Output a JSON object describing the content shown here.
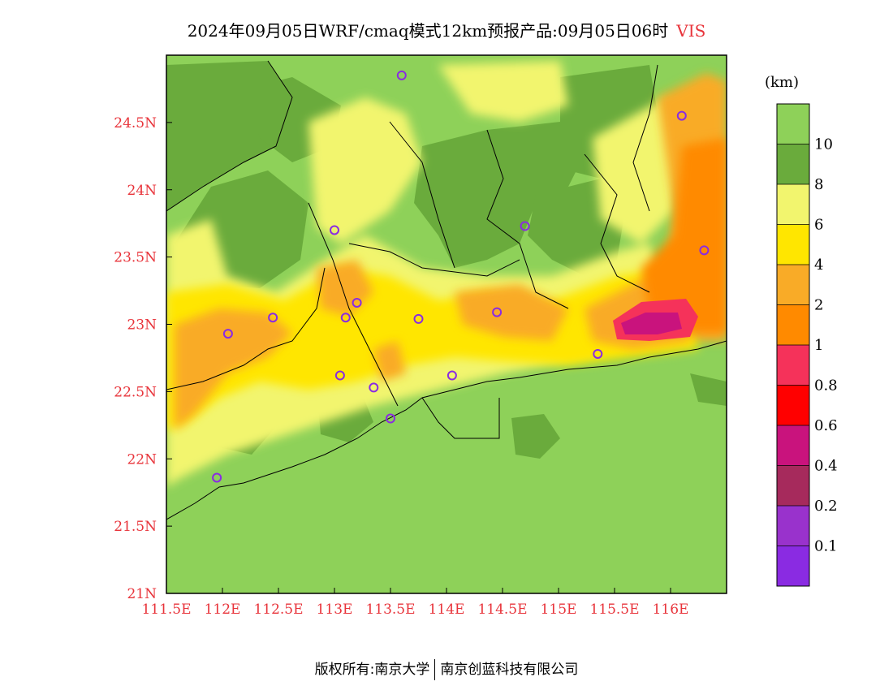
{
  "title": {
    "main": "2024年09月05日WRF/cmaq模式12km预报产品:09月05日06时",
    "variable": "VIS"
  },
  "map": {
    "lon_ticks": [
      "111.5E",
      "112E",
      "112.5E",
      "113E",
      "113.5E",
      "114E",
      "114.5E",
      "115E",
      "115.5E",
      "116E"
    ],
    "lat_ticks": [
      "21N",
      "21.5N",
      "22N",
      "22.5N",
      "23N",
      "23.5N",
      "24N",
      "24.5N"
    ],
    "lon_range": [
      111.5,
      116.5
    ],
    "lat_range": [
      21.0,
      25.0
    ],
    "colors": {
      "sea": "#8ed159",
      "green_dark": "#6aab3c",
      "yellow_light": "#f2f56e",
      "yellow": "#ffe600",
      "orange_light": "#f9ab27",
      "orange": "#ff8a00",
      "pink_red": "#f5325a",
      "magenta": "#c9137d",
      "station_ring": "#8a2be2"
    }
  },
  "stations": [
    {
      "lon": 113.6,
      "lat": 24.85
    },
    {
      "lon": 116.1,
      "lat": 24.55
    },
    {
      "lon": 113.0,
      "lat": 23.7
    },
    {
      "lon": 114.7,
      "lat": 23.73
    },
    {
      "lon": 116.3,
      "lat": 23.55
    },
    {
      "lon": 112.45,
      "lat": 23.05
    },
    {
      "lon": 112.05,
      "lat": 22.93
    },
    {
      "lon": 113.1,
      "lat": 23.05
    },
    {
      "lon": 113.2,
      "lat": 23.16
    },
    {
      "lon": 113.75,
      "lat": 23.04
    },
    {
      "lon": 114.45,
      "lat": 23.09
    },
    {
      "lon": 115.35,
      "lat": 22.78
    },
    {
      "lon": 113.05,
      "lat": 22.62
    },
    {
      "lon": 113.35,
      "lat": 22.53
    },
    {
      "lon": 114.05,
      "lat": 22.62
    },
    {
      "lon": 113.5,
      "lat": 22.3
    },
    {
      "lon": 111.95,
      "lat": 21.86
    }
  ],
  "colorbar": {
    "unit": "(km)",
    "labels": [
      "10",
      "8",
      "6",
      "4",
      "2",
      "1",
      "0.8",
      "0.6",
      "0.4",
      "0.2",
      "0.1"
    ],
    "colors": [
      "#8ed159",
      "#6aab3c",
      "#f2f56e",
      "#ffe600",
      "#f9ab27",
      "#ff8a00",
      "#f5325a",
      "#ff0000",
      "#c9137d",
      "#a62a5c",
      "#9932cc",
      "#8a2be2"
    ]
  },
  "footer": {
    "left": "版权所有:南京大学",
    "right": "南京创蓝科技有限公司"
  }
}
